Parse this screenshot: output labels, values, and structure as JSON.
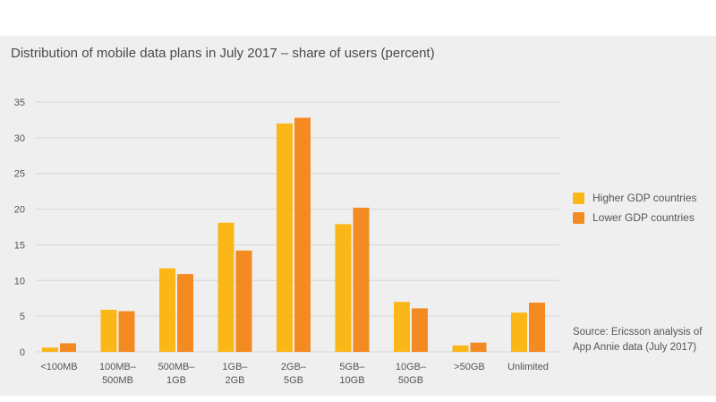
{
  "chart_data": {
    "type": "bar",
    "title": "Distribution of mobile data plans in July 2017 – share of users (percent)",
    "xlabel": "",
    "ylabel": "",
    "ylim": [
      0,
      35
    ],
    "yticks": [
      0,
      5,
      10,
      15,
      20,
      25,
      30,
      35
    ],
    "grid": true,
    "legend_position": "right",
    "categories": [
      [
        "<100MB"
      ],
      [
        "100MB–",
        "500MB"
      ],
      [
        "500MB–",
        "1GB"
      ],
      [
        "1GB–",
        "2GB"
      ],
      [
        "2GB–",
        "5GB"
      ],
      [
        "5GB–",
        "10GB"
      ],
      [
        "10GB–",
        "50GB"
      ],
      [
        ">50GB"
      ],
      [
        "Unlimited"
      ]
    ],
    "series": [
      {
        "name": "Higher GDP countries",
        "color": "#fbb718",
        "values": [
          0.6,
          5.9,
          11.7,
          18.1,
          32.0,
          17.9,
          7.0,
          0.9,
          5.5
        ]
      },
      {
        "name": "Lower GDP countries",
        "color": "#f38b22",
        "values": [
          1.2,
          5.7,
          10.9,
          14.2,
          32.8,
          20.2,
          6.1,
          1.3,
          6.9
        ]
      }
    ],
    "source": [
      "Source: Ericsson analysis of",
      "App Annie data (July 2017)"
    ]
  },
  "colors": {
    "background": "#efefef",
    "gridline": "#d6d6d6",
    "axis_text": "#555555"
  }
}
